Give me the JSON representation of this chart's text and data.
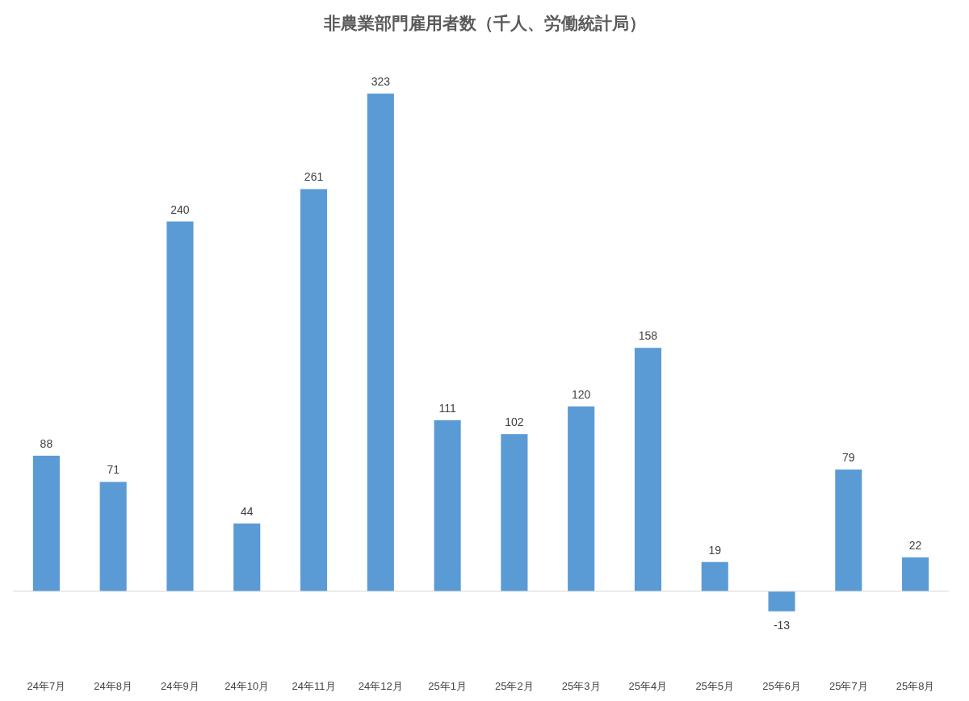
{
  "chart_data": {
    "type": "bar",
    "title": "非農業部門雇用者数（千人、労働統計局）",
    "categories": [
      "24年7月",
      "24年8月",
      "24年9月",
      "24年10月",
      "24年11月",
      "24年12月",
      "25年1月",
      "25年2月",
      "25年3月",
      "25年4月",
      "25年5月",
      "25年6月",
      "25年7月",
      "25年8月"
    ],
    "values": [
      88,
      71,
      240,
      44,
      261,
      323,
      111,
      102,
      120,
      158,
      19,
      -13,
      79,
      22
    ],
    "color": "#5b9bd5",
    "data_labels": true
  }
}
